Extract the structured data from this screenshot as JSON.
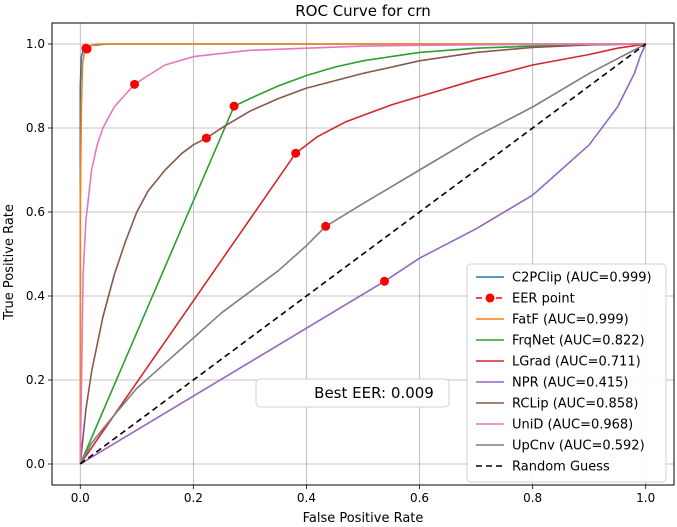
{
  "chart_data": {
    "type": "line",
    "title": "ROC Curve for crn",
    "xlabel": "False Positive Rate",
    "ylabel": "True Positive Rate",
    "xlim": [
      -0.05,
      1.05
    ],
    "ylim": [
      -0.05,
      1.05
    ],
    "grid": true,
    "legend_position": "lower-right",
    "xticks": [
      "0.0",
      "0.2",
      "0.4",
      "0.6",
      "0.8",
      "1.0"
    ],
    "yticks": [
      "0.0",
      "0.2",
      "0.4",
      "0.6",
      "0.8",
      "1.0"
    ],
    "annotation": "Best EER: 0.009",
    "series": [
      {
        "name": "C2PClip (AUC=0.999)",
        "color": "#1f77b4",
        "eer": [
          0.01,
          0.99
        ],
        "x": [
          0,
          0,
          0.002,
          0.005,
          0.01,
          0.02,
          0.05,
          1.0
        ],
        "y": [
          0,
          0.9,
          0.97,
          0.985,
          0.99,
          0.997,
          1.0,
          1.0
        ]
      },
      {
        "name": "FatF (AUC=0.999)",
        "color": "#ff7f0e",
        "eer": [
          0.012,
          0.988
        ],
        "x": [
          0,
          0,
          0.002,
          0.004,
          0.008,
          0.015,
          0.03,
          1.0
        ],
        "y": [
          0,
          0.62,
          0.85,
          0.95,
          0.985,
          0.995,
          1.0,
          1.0
        ]
      },
      {
        "name": "FrqNet (AUC=0.822)",
        "color": "#2ca02c",
        "eer": [
          0.272,
          0.852
        ],
        "x": [
          0,
          0.272,
          0.3,
          0.35,
          0.4,
          0.45,
          0.5,
          0.55,
          0.6,
          0.7,
          0.8,
          0.9,
          1.0
        ],
        "y": [
          0,
          0.852,
          0.87,
          0.9,
          0.925,
          0.945,
          0.96,
          0.97,
          0.98,
          0.99,
          0.995,
          0.998,
          1.0
        ]
      },
      {
        "name": "LGrad (AUC=0.711)",
        "color": "#d62728",
        "eer": [
          0.381,
          0.74
        ],
        "x": [
          0,
          0.381,
          0.42,
          0.47,
          0.5,
          0.55,
          0.6,
          0.7,
          0.8,
          0.9,
          0.95,
          1.0
        ],
        "y": [
          0,
          0.74,
          0.78,
          0.815,
          0.83,
          0.855,
          0.875,
          0.915,
          0.95,
          0.975,
          0.99,
          1.0
        ]
      },
      {
        "name": "NPR (AUC=0.415)",
        "color": "#9467bd",
        "eer": [
          0.538,
          0.435
        ],
        "x": [
          0,
          0.538,
          0.6,
          0.7,
          0.8,
          0.85,
          0.9,
          0.95,
          0.98,
          0.99,
          1.0
        ],
        "y": [
          0,
          0.435,
          0.49,
          0.56,
          0.64,
          0.7,
          0.76,
          0.85,
          0.93,
          0.97,
          1.0
        ]
      },
      {
        "name": "RCLip (AUC=0.858)",
        "color": "#8c564b",
        "eer": [
          0.223,
          0.776
        ],
        "x": [
          0,
          0.01,
          0.02,
          0.04,
          0.06,
          0.08,
          0.1,
          0.12,
          0.15,
          0.18,
          0.2,
          0.223,
          0.25,
          0.3,
          0.35,
          0.4,
          0.5,
          0.6,
          0.7,
          0.8,
          0.9,
          1.0
        ],
        "y": [
          0,
          0.13,
          0.22,
          0.35,
          0.45,
          0.53,
          0.6,
          0.65,
          0.7,
          0.74,
          0.76,
          0.776,
          0.8,
          0.84,
          0.87,
          0.895,
          0.93,
          0.96,
          0.98,
          0.992,
          0.998,
          1.0
        ]
      },
      {
        "name": "UniD (AUC=0.968)",
        "color": "#e377c2",
        "eer": [
          0.096,
          0.904
        ],
        "x": [
          0,
          0.005,
          0.01,
          0.02,
          0.03,
          0.04,
          0.06,
          0.08,
          0.096,
          0.12,
          0.15,
          0.2,
          0.3,
          0.4,
          0.5,
          0.6,
          0.8,
          1.0
        ],
        "y": [
          0,
          0.45,
          0.58,
          0.7,
          0.76,
          0.8,
          0.85,
          0.88,
          0.904,
          0.925,
          0.95,
          0.97,
          0.985,
          0.99,
          0.995,
          0.997,
          0.999,
          1.0
        ]
      },
      {
        "name": "UpCnv (AUC=0.592)",
        "color": "#7f7f7f",
        "eer": [
          0.434,
          0.566
        ],
        "x": [
          0,
          0.02,
          0.05,
          0.1,
          0.15,
          0.2,
          0.25,
          0.3,
          0.35,
          0.4,
          0.434,
          0.5,
          0.6,
          0.7,
          0.8,
          0.9,
          1.0
        ],
        "y": [
          0,
          0.05,
          0.1,
          0.18,
          0.24,
          0.3,
          0.36,
          0.41,
          0.46,
          0.52,
          0.566,
          0.62,
          0.7,
          0.78,
          0.85,
          0.93,
          1.0
        ]
      }
    ],
    "eer_legend_label": "EER point",
    "baseline": {
      "name": "Random Guess",
      "x": [
        0,
        1
      ],
      "y": [
        0,
        1
      ],
      "color": "#000000",
      "dash": "dashed"
    },
    "legend_order": [
      "C2PClip (AUC=0.999)",
      "EER point",
      "FatF (AUC=0.999)",
      "FrqNet (AUC=0.822)",
      "LGrad (AUC=0.711)",
      "NPR (AUC=0.415)",
      "RCLip (AUC=0.858)",
      "UniD (AUC=0.968)",
      "UpCnv (AUC=0.592)",
      "Random Guess"
    ]
  }
}
